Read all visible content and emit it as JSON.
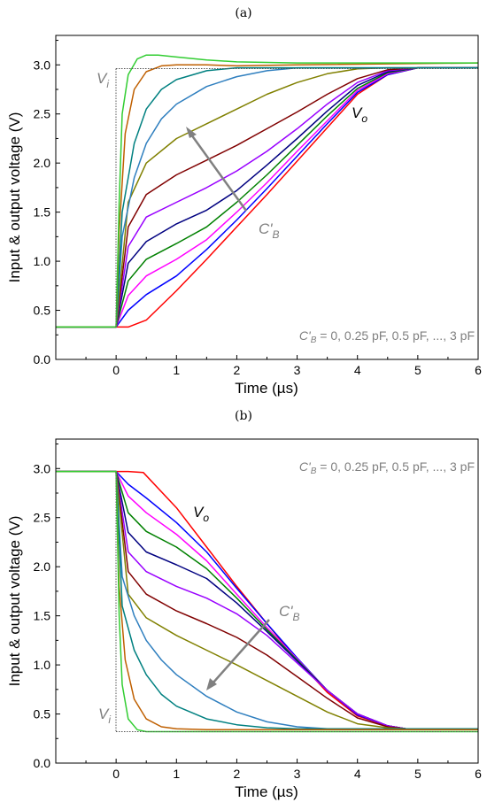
{
  "chart_data": [
    {
      "panel_label": "(a)",
      "type": "line",
      "xlabel": "Time (µs)",
      "ylabel": "Input & output voltage (V)",
      "xlim": [
        -1,
        6
      ],
      "ylim": [
        0,
        3.3
      ],
      "xticks": [
        0,
        1,
        2,
        3,
        4,
        5,
        6
      ],
      "yticks": [
        0.0,
        0.5,
        1.0,
        1.5,
        2.0,
        2.5,
        3.0
      ],
      "yticklabels": [
        "0.0",
        "0.5",
        "1.0",
        "1.5",
        "2.0",
        "2.5",
        "3.0"
      ],
      "note": "C'B = 0, 0.25 pF, 0.5 pF, ..., 3 pF",
      "note_main": "C'",
      "note_sub": "B",
      "note_rest": " = 0, 0.25 pF, 0.5 pF, ..., 3 pF",
      "annotations": {
        "vi_main": "V",
        "vi_sub": "i",
        "vo_main": "V",
        "vo_sub": "o",
        "cb_main": "C'",
        "cb_sub": "B"
      },
      "input": {
        "name": "Vi",
        "x": [
          -1,
          0,
          0,
          6
        ],
        "y": [
          0.33,
          0.33,
          2.97,
          2.97
        ]
      },
      "series": [
        {
          "color": "#ff0000",
          "x": [
            -1,
            0,
            0.2,
            0.5,
            1,
            1.5,
            2,
            2.5,
            3,
            3.5,
            4,
            4.5,
            5,
            6
          ],
          "y": [
            0.33,
            0.33,
            0.33,
            0.4,
            0.7,
            1.02,
            1.35,
            1.68,
            2.02,
            2.36,
            2.7,
            2.9,
            2.97,
            2.97
          ]
        },
        {
          "color": "#0000ff",
          "x": [
            -1,
            0,
            0.2,
            0.5,
            1,
            1.5,
            2,
            2.5,
            3,
            3.5,
            4,
            4.5,
            5,
            6
          ],
          "y": [
            0.33,
            0.33,
            0.5,
            0.66,
            0.85,
            1.12,
            1.42,
            1.74,
            2.07,
            2.4,
            2.72,
            2.9,
            2.97,
            2.97
          ]
        },
        {
          "color": "#ff00ff",
          "x": [
            -1,
            0,
            0.2,
            0.5,
            1,
            1.5,
            2,
            2.5,
            3,
            3.5,
            4,
            4.5,
            5,
            6
          ],
          "y": [
            0.33,
            0.33,
            0.65,
            0.85,
            1.02,
            1.22,
            1.5,
            1.8,
            2.12,
            2.43,
            2.74,
            2.91,
            2.97,
            2.97
          ]
        },
        {
          "color": "#008000",
          "x": [
            -1,
            0,
            0.2,
            0.5,
            1,
            1.5,
            2,
            2.5,
            3,
            3.5,
            4,
            4.5,
            5,
            6
          ],
          "y": [
            0.33,
            0.33,
            0.8,
            1.02,
            1.18,
            1.35,
            1.6,
            1.88,
            2.18,
            2.48,
            2.76,
            2.92,
            2.97,
            2.97
          ]
        },
        {
          "color": "#000080",
          "x": [
            -1,
            0,
            0.2,
            0.5,
            1,
            1.5,
            2,
            2.5,
            3,
            3.5,
            4,
            4.5,
            5,
            6
          ],
          "y": [
            0.33,
            0.33,
            0.98,
            1.2,
            1.38,
            1.52,
            1.72,
            1.98,
            2.25,
            2.53,
            2.79,
            2.93,
            2.97,
            2.97
          ]
        },
        {
          "color": "#9900ff",
          "x": [
            -1,
            0,
            0.2,
            0.5,
            1,
            1.5,
            2,
            2.5,
            3,
            3.5,
            4,
            4.5,
            5,
            6
          ],
          "y": [
            0.33,
            0.33,
            1.15,
            1.45,
            1.6,
            1.75,
            1.92,
            2.12,
            2.35,
            2.6,
            2.82,
            2.94,
            2.97,
            2.97
          ]
        },
        {
          "color": "#800000",
          "x": [
            -1,
            0,
            0.2,
            0.5,
            1,
            1.5,
            2,
            2.5,
            3,
            3.5,
            4,
            4.5,
            5,
            6
          ],
          "y": [
            0.33,
            0.33,
            1.35,
            1.68,
            1.88,
            2.03,
            2.18,
            2.35,
            2.52,
            2.7,
            2.86,
            2.95,
            2.97,
            2.97
          ]
        },
        {
          "color": "#808000",
          "x": [
            -1,
            0,
            0.2,
            0.5,
            1,
            1.5,
            2,
            2.5,
            3,
            3.5,
            4,
            4.5,
            5,
            6
          ],
          "y": [
            0.33,
            0.33,
            1.6,
            2.0,
            2.25,
            2.4,
            2.55,
            2.7,
            2.82,
            2.91,
            2.96,
            2.97,
            2.97,
            2.97
          ]
        },
        {
          "color": "#2f7fbf",
          "x": [
            -1,
            0,
            0.1,
            0.3,
            0.5,
            0.75,
            1,
            1.5,
            2,
            2.5,
            3,
            3.5,
            4,
            6
          ],
          "y": [
            0.33,
            0.33,
            1.25,
            1.85,
            2.2,
            2.45,
            2.6,
            2.78,
            2.88,
            2.94,
            2.97,
            2.97,
            2.97,
            2.97
          ]
        },
        {
          "color": "#008080",
          "x": [
            -1,
            0,
            0.1,
            0.3,
            0.5,
            0.75,
            1,
            1.5,
            2,
            2.5,
            3,
            6
          ],
          "y": [
            0.33,
            0.33,
            1.5,
            2.2,
            2.55,
            2.75,
            2.85,
            2.94,
            2.97,
            2.97,
            2.97,
            2.97
          ]
        },
        {
          "color": "#bf5f00",
          "x": [
            -1,
            0,
            0.05,
            0.15,
            0.3,
            0.5,
            0.75,
            1,
            1.5,
            2,
            3,
            6
          ],
          "y": [
            0.33,
            0.33,
            1.3,
            2.3,
            2.75,
            2.93,
            2.99,
            3.0,
            3.0,
            2.99,
            3.0,
            3.02
          ]
        },
        {
          "color": "#32cd32",
          "x": [
            -1,
            0,
            0.05,
            0.1,
            0.2,
            0.35,
            0.5,
            0.7,
            1,
            1.5,
            2,
            3,
            6
          ],
          "y": [
            0.33,
            0.33,
            1.6,
            2.5,
            2.9,
            3.06,
            3.1,
            3.1,
            3.08,
            3.05,
            3.03,
            3.02,
            3.02
          ]
        }
      ]
    },
    {
      "panel_label": "(b)",
      "type": "line",
      "xlabel": "Time (µs)",
      "ylabel": "Input & output voltage (V)",
      "xlim": [
        -1,
        6
      ],
      "ylim": [
        0,
        3.3
      ],
      "xticks": [
        0,
        1,
        2,
        3,
        4,
        5,
        6
      ],
      "yticks": [
        0.0,
        0.5,
        1.0,
        1.5,
        2.0,
        2.5,
        3.0
      ],
      "yticklabels": [
        "0.0",
        "0.5",
        "1.0",
        "1.5",
        "2.0",
        "2.5",
        "3.0"
      ],
      "note": "C'B = 0, 0.25 pF, 0.5 pF, ..., 3 pF",
      "note_main": "C'",
      "note_sub": "B",
      "note_rest": " = 0, 0.25 pF, 0.5 pF, ..., 3 pF",
      "annotations": {
        "vi_main": "V",
        "vi_sub": "i",
        "vo_main": "V",
        "vo_sub": "o",
        "cb_main": "C'",
        "cb_sub": "B"
      },
      "input": {
        "name": "Vi",
        "x": [
          -1,
          0,
          0,
          6
        ],
        "y": [
          2.97,
          2.97,
          0.33,
          0.33
        ]
      },
      "series": [
        {
          "color": "#ff0000",
          "x": [
            -1,
            0,
            0.2,
            0.45,
            1,
            1.5,
            2,
            2.5,
            3,
            3.5,
            4,
            4.5,
            4.8,
            6
          ],
          "y": [
            2.97,
            2.97,
            2.97,
            2.96,
            2.6,
            2.2,
            1.8,
            1.42,
            1.05,
            0.72,
            0.48,
            0.38,
            0.35,
            0.35
          ]
        },
        {
          "color": "#0000ff",
          "x": [
            -1,
            0,
            0.2,
            0.5,
            1,
            1.5,
            2,
            2.5,
            3,
            3.5,
            4,
            4.5,
            4.8,
            6
          ],
          "y": [
            2.97,
            2.97,
            2.84,
            2.7,
            2.45,
            2.15,
            1.78,
            1.42,
            1.07,
            0.74,
            0.49,
            0.38,
            0.35,
            0.35
          ]
        },
        {
          "color": "#ff00ff",
          "x": [
            -1,
            0,
            0.2,
            0.5,
            1,
            1.5,
            2,
            2.5,
            3,
            3.5,
            4,
            4.5,
            4.8,
            6
          ],
          "y": [
            2.97,
            2.97,
            2.72,
            2.55,
            2.33,
            2.06,
            1.72,
            1.38,
            1.06,
            0.74,
            0.5,
            0.38,
            0.35,
            0.35
          ]
        },
        {
          "color": "#008000",
          "x": [
            -1,
            0,
            0.2,
            0.5,
            1,
            1.5,
            2,
            2.5,
            3,
            3.5,
            4,
            4.5,
            4.8,
            6
          ],
          "y": [
            2.97,
            2.97,
            2.55,
            2.36,
            2.2,
            1.98,
            1.68,
            1.36,
            1.05,
            0.74,
            0.5,
            0.38,
            0.35,
            0.35
          ]
        },
        {
          "color": "#000080",
          "x": [
            -1,
            0,
            0.2,
            0.5,
            1,
            1.5,
            2,
            2.5,
            3,
            3.5,
            4,
            4.5,
            4.8,
            6
          ],
          "y": [
            2.97,
            2.97,
            2.35,
            2.15,
            2.02,
            1.88,
            1.63,
            1.34,
            1.04,
            0.74,
            0.5,
            0.38,
            0.35,
            0.35
          ]
        },
        {
          "color": "#9900ff",
          "x": [
            -1,
            0,
            0.2,
            0.5,
            1,
            1.5,
            2,
            2.5,
            3,
            3.5,
            4,
            4.5,
            4.8,
            6
          ],
          "y": [
            2.97,
            2.97,
            2.15,
            1.95,
            1.8,
            1.68,
            1.52,
            1.3,
            1.02,
            0.74,
            0.5,
            0.38,
            0.35,
            0.35
          ]
        },
        {
          "color": "#800000",
          "x": [
            -1,
            0,
            0.2,
            0.5,
            1,
            1.5,
            2,
            2.5,
            3,
            3.5,
            4,
            4.5,
            4.8,
            6
          ],
          "y": [
            2.97,
            2.97,
            1.95,
            1.72,
            1.55,
            1.42,
            1.28,
            1.1,
            0.88,
            0.66,
            0.46,
            0.37,
            0.35,
            0.35
          ]
        },
        {
          "color": "#808000",
          "x": [
            -1,
            0,
            0.2,
            0.5,
            1,
            1.5,
            2,
            2.5,
            3,
            3.5,
            4,
            4.5,
            4.8,
            6
          ],
          "y": [
            2.97,
            2.97,
            1.72,
            1.48,
            1.3,
            1.15,
            1.0,
            0.84,
            0.68,
            0.52,
            0.4,
            0.36,
            0.35,
            0.35
          ]
        },
        {
          "color": "#2f7fbf",
          "x": [
            -1,
            0,
            0.1,
            0.3,
            0.5,
            0.75,
            1,
            1.5,
            2,
            2.5,
            3,
            3.5,
            4,
            6
          ],
          "y": [
            2.97,
            2.97,
            1.9,
            1.5,
            1.25,
            1.05,
            0.9,
            0.68,
            0.52,
            0.42,
            0.37,
            0.35,
            0.35,
            0.35
          ]
        },
        {
          "color": "#008080",
          "x": [
            -1,
            0,
            0.1,
            0.3,
            0.5,
            0.75,
            1,
            1.5,
            2,
            2.5,
            3,
            6
          ],
          "y": [
            2.97,
            2.97,
            1.6,
            1.15,
            0.9,
            0.7,
            0.58,
            0.45,
            0.39,
            0.36,
            0.35,
            0.35
          ]
        },
        {
          "color": "#bf5f00",
          "x": [
            -1,
            0,
            0.05,
            0.15,
            0.3,
            0.5,
            0.75,
            1,
            1.5,
            2,
            3,
            6
          ],
          "y": [
            2.97,
            2.97,
            1.8,
            1.05,
            0.65,
            0.45,
            0.37,
            0.35,
            0.34,
            0.34,
            0.34,
            0.34
          ]
        },
        {
          "color": "#32cd32",
          "x": [
            -1,
            0,
            0.05,
            0.1,
            0.2,
            0.35,
            0.5,
            0.7,
            1,
            1.5,
            2,
            3,
            6
          ],
          "y": [
            2.97,
            2.97,
            1.5,
            0.8,
            0.45,
            0.34,
            0.32,
            0.32,
            0.32,
            0.32,
            0.32,
            0.32,
            0.32
          ]
        }
      ]
    }
  ]
}
